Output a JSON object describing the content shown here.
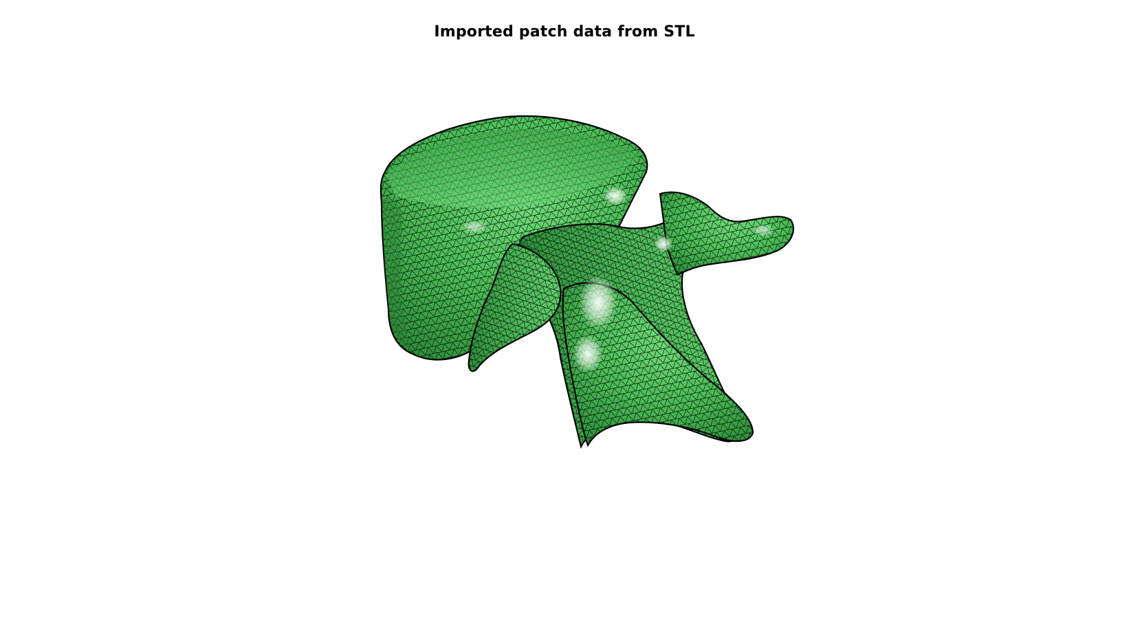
{
  "figure": {
    "title": "Imported patch data from STL"
  },
  "mesh": {
    "object": "vertebra",
    "face_color": "#4fbf5c",
    "face_color_highlight": "#e9f6ea",
    "edge_color": "#000000",
    "shading": "lit-triangulated-patch"
  }
}
